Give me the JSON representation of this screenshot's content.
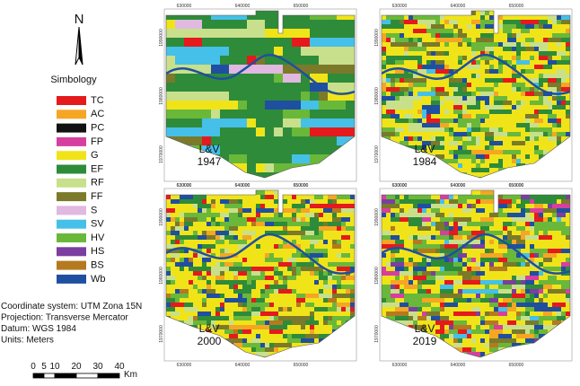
{
  "north": "N",
  "legend_title": "Simbology",
  "legend": [
    {
      "code": "TC",
      "color": "#e41a1c"
    },
    {
      "code": "AC",
      "color": "#f5a623"
    },
    {
      "code": "PC",
      "color": "#111111"
    },
    {
      "code": "FP",
      "color": "#d63fa0"
    },
    {
      "code": "G",
      "color": "#f0e419"
    },
    {
      "code": "EF",
      "color": "#2e8b3a"
    },
    {
      "code": "RF",
      "color": "#c8e08c"
    },
    {
      "code": "FF",
      "color": "#7a7a2a"
    },
    {
      "code": "S",
      "color": "#e0b8e0"
    },
    {
      "code": "SV",
      "color": "#45c0e8"
    },
    {
      "code": "HV",
      "color": "#6ab83a"
    },
    {
      "code": "HS",
      "color": "#7a3fa0"
    },
    {
      "code": "BS",
      "color": "#b5791f"
    },
    {
      "code": "Wb",
      "color": "#1f4fa0"
    }
  ],
  "info": [
    "Coordinate system: UTM Zona 15N",
    "Projection: Transverse Mercator",
    "Datum: WGS 1984",
    "Units: Meters"
  ],
  "scale_bar": {
    "ticks": [
      0,
      5,
      10,
      20,
      30,
      40
    ],
    "unit": "Km"
  },
  "maps": [
    {
      "place": "L&V",
      "year": "1947"
    },
    {
      "place": "L&V",
      "year": "1984"
    },
    {
      "place": "L&V",
      "year": "2000"
    },
    {
      "place": "L&V",
      "year": "2019"
    }
  ],
  "map_ticks": {
    "x": [
      630000,
      640000,
      650000
    ],
    "y": [
      1990000,
      1980000,
      1970000
    ]
  }
}
